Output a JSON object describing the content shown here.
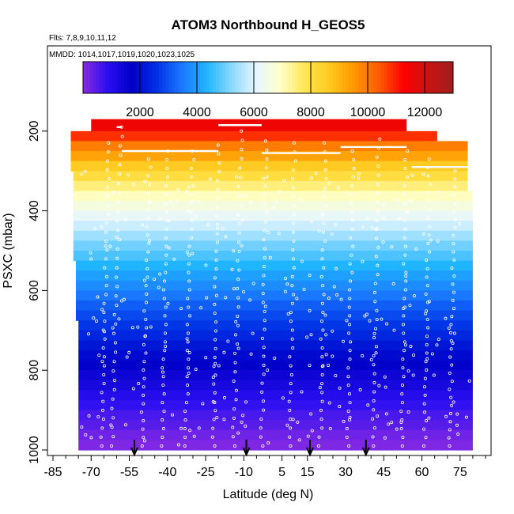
{
  "chart_data": {
    "type": "heatmap",
    "title": "ATOM3 Northbound H_GEOS5",
    "notes": [
      "Flts: 7,8,9,10,11,12",
      "MMDD: 1014,1017,1019,1020,1023,1025"
    ],
    "xlabel": "Latitude (deg N)",
    "ylabel": "PSXC (mbar)",
    "xlim": [
      -85,
      85
    ],
    "ylim": [
      1000,
      0
    ],
    "x_ticks": [
      -85,
      -70,
      -55,
      -40,
      -25,
      -10,
      5,
      15,
      30,
      45,
      60,
      75
    ],
    "y_ticks": [
      200,
      400,
      600,
      800,
      1000
    ],
    "colorbar": {
      "min": 0,
      "max": 13000,
      "ticks": [
        2000,
        4000,
        6000,
        8000,
        10000,
        12000
      ],
      "colors": [
        "#8a2be2",
        "#2a0ff0",
        "#0000c8",
        "#0032e6",
        "#1a78ff",
        "#1fb4ff",
        "#8ad8ff",
        "#e6f6ff",
        "#ffffc8",
        "#ffe650",
        "#ffc81e",
        "#ff9600",
        "#ff5a00",
        "#ff0000",
        "#c81414",
        "#a01e1e"
      ]
    },
    "bands": [
      {
        "p": [
          170,
          200
        ],
        "lat": [
          -70,
          54
        ],
        "value": 11500
      },
      {
        "p": [
          200,
          225
        ],
        "lat": [
          -78,
          66
        ],
        "value": 10800
      },
      {
        "p": [
          225,
          250
        ],
        "lat": [
          -78,
          78
        ],
        "value": 9900
      },
      {
        "p": [
          250,
          275
        ],
        "lat": [
          -78,
          78
        ],
        "value": 9300
      },
      {
        "p": [
          275,
          300
        ],
        "lat": [
          -78,
          78
        ],
        "value": 8600
      },
      {
        "p": [
          300,
          325
        ],
        "lat": [
          -77,
          78
        ],
        "value": 8100
      },
      {
        "p": [
          325,
          350
        ],
        "lat": [
          -77,
          78
        ],
        "value": 7500
      },
      {
        "p": [
          350,
          375
        ],
        "lat": [
          -77,
          80
        ],
        "value": 7000
      },
      {
        "p": [
          375,
          400
        ],
        "lat": [
          -77,
          80
        ],
        "value": 6600
      },
      {
        "p": [
          400,
          425
        ],
        "lat": [
          -77,
          80
        ],
        "value": 6200
      },
      {
        "p": [
          425,
          450
        ],
        "lat": [
          -77,
          80
        ],
        "value": 5800
      },
      {
        "p": [
          450,
          475
        ],
        "lat": [
          -77,
          80
        ],
        "value": 5400
      },
      {
        "p": [
          475,
          500
        ],
        "lat": [
          -77,
          80
        ],
        "value": 5000
      },
      {
        "p": [
          500,
          525
        ],
        "lat": [
          -77,
          80
        ],
        "value": 4700
      },
      {
        "p": [
          525,
          550
        ],
        "lat": [
          -76,
          80
        ],
        "value": 4350
      },
      {
        "p": [
          550,
          575
        ],
        "lat": [
          -76,
          80
        ],
        "value": 4050
      },
      {
        "p": [
          575,
          600
        ],
        "lat": [
          -76,
          80
        ],
        "value": 3750
      },
      {
        "p": [
          600,
          625
        ],
        "lat": [
          -76,
          80
        ],
        "value": 3450
      },
      {
        "p": [
          625,
          650
        ],
        "lat": [
          -76,
          80
        ],
        "value": 3150
      },
      {
        "p": [
          650,
          675
        ],
        "lat": [
          -76,
          80
        ],
        "value": 2900
      },
      {
        "p": [
          675,
          700
        ],
        "lat": [
          -75,
          80
        ],
        "value": 2650
      },
      {
        "p": [
          700,
          725
        ],
        "lat": [
          -75,
          80
        ],
        "value": 2400
      },
      {
        "p": [
          725,
          750
        ],
        "lat": [
          -75,
          80
        ],
        "value": 2150
      },
      {
        "p": [
          750,
          775
        ],
        "lat": [
          -75,
          80
        ],
        "value": 1900
      },
      {
        "p": [
          775,
          800
        ],
        "lat": [
          -75,
          80
        ],
        "value": 1700
      },
      {
        "p": [
          800,
          825
        ],
        "lat": [
          -75,
          80
        ],
        "value": 1450
      },
      {
        "p": [
          825,
          850
        ],
        "lat": [
          -75,
          80
        ],
        "value": 1250
      },
      {
        "p": [
          850,
          875
        ],
        "lat": [
          -75,
          80
        ],
        "value": 1000
      },
      {
        "p": [
          875,
          900
        ],
        "lat": [
          -75,
          80
        ],
        "value": 800
      },
      {
        "p": [
          900,
          925
        ],
        "lat": [
          -75,
          80
        ],
        "value": 600
      },
      {
        "p": [
          925,
          950
        ],
        "lat": [
          -75,
          80
        ],
        "value": 450
      },
      {
        "p": [
          950,
          975
        ],
        "lat": [
          -75,
          80
        ],
        "value": 250
      },
      {
        "p": [
          975,
          1000
        ],
        "lat": [
          -75,
          80
        ],
        "value": 100
      }
    ],
    "profiles": [
      {
        "lat": [
          -66,
          -63
        ],
        "p": [
          990,
          230
        ]
      },
      {
        "lat": [
          -62,
          -58
        ],
        "p": [
          990,
          190
        ]
      },
      {
        "lat": [
          -50,
          -47
        ],
        "p": [
          990,
          270
        ]
      },
      {
        "lat": [
          -42,
          -40
        ],
        "p": [
          990,
          250
        ]
      },
      {
        "lat": [
          -33,
          -30
        ],
        "p": [
          990,
          250
        ]
      },
      {
        "lat": [
          -22,
          -20
        ],
        "p": [
          990,
          235
        ]
      },
      {
        "lat": [
          -14,
          -11
        ],
        "p": [
          990,
          200
        ]
      },
      {
        "lat": [
          -3,
          -1
        ],
        "p": [
          990,
          225
        ]
      },
      {
        "lat": [
          8,
          10
        ],
        "p": [
          990,
          230
        ]
      },
      {
        "lat": [
          20,
          22
        ],
        "p": [
          990,
          230
        ]
      },
      {
        "lat": [
          31,
          33
        ],
        "p": [
          990,
          250
        ]
      },
      {
        "lat": [
          41,
          43
        ],
        "p": [
          990,
          220
        ]
      },
      {
        "lat": [
          52,
          54
        ],
        "p": [
          990,
          250
        ]
      },
      {
        "lat": [
          61,
          63
        ],
        "p": [
          990,
          270
        ]
      },
      {
        "lat": [
          71,
          73
        ],
        "p": [
          990,
          300
        ]
      }
    ],
    "level_legs": [
      {
        "lat": [
          -60,
          -58
        ],
        "p": 190
      },
      {
        "lat": [
          -58,
          -20
        ],
        "p": 250
      },
      {
        "lat": [
          -20,
          -3
        ],
        "p": 185
      },
      {
        "lat": [
          -3,
          28
        ],
        "p": 255
      },
      {
        "lat": [
          28,
          54
        ],
        "p": 240
      },
      {
        "lat": [
          56,
          78
        ],
        "p": 290
      }
    ],
    "arrows_lat": [
      -53,
      -9,
      16,
      38
    ]
  }
}
